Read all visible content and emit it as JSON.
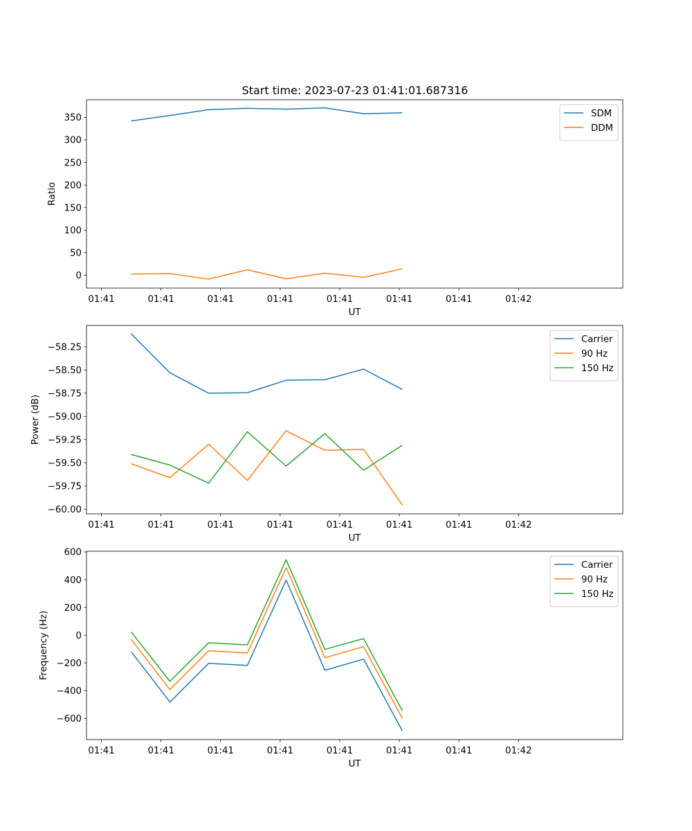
{
  "chart_data": [
    {
      "type": "line",
      "title": "Start time: 2023-07-23 01:41:01.687316",
      "xlabel": "UT",
      "ylabel": "Ratio",
      "x_tick_labels": [
        "01:41",
        "01:41",
        "01:41",
        "01:41",
        "01:41",
        "01:41",
        "01:41",
        "01:42"
      ],
      "xlim": [
        -0.25,
        8.75
      ],
      "ylim": [
        -28.5,
        389
      ],
      "y_ticks": [
        0,
        50,
        100,
        150,
        200,
        250,
        300,
        350
      ],
      "y_tick_labels": [
        "0",
        "50",
        "100",
        "150",
        "200",
        "250",
        "300",
        "350"
      ],
      "legend_position": "top-right",
      "x": [
        0.5,
        1.15,
        1.8,
        2.45,
        3.1,
        3.75,
        4.4,
        5.05
      ],
      "series": [
        {
          "name": "SDM",
          "color": "#1f77b4",
          "values": [
            342,
            354,
            367,
            370,
            368,
            371,
            358,
            360
          ]
        },
        {
          "name": "DDM",
          "color": "#ff7f0e",
          "values": [
            2.5,
            3.5,
            -8.5,
            12,
            -8,
            4.5,
            -4.5,
            14
          ]
        }
      ]
    },
    {
      "type": "line",
      "title": "",
      "xlabel": "UT",
      "ylabel": "Power (dB)",
      "x_tick_labels": [
        "01:41",
        "01:41",
        "01:41",
        "01:41",
        "01:41",
        "01:41",
        "01:41",
        "01:42"
      ],
      "xlim": [
        -0.25,
        8.75
      ],
      "ylim": [
        -60.05,
        -58.02
      ],
      "y_ticks": [
        -60.0,
        -59.75,
        -59.5,
        -59.25,
        -59.0,
        -58.75,
        -58.5,
        -58.25
      ],
      "y_tick_labels": [
        "−60.00",
        "−59.75",
        "−59.50",
        "−59.25",
        "−59.00",
        "−58.75",
        "−58.50",
        "−58.25"
      ],
      "legend_position": "top-right",
      "x": [
        0.5,
        1.15,
        1.8,
        2.45,
        3.1,
        3.75,
        4.4,
        5.05
      ],
      "series": [
        {
          "name": "Carrier",
          "color": "#1f77b4",
          "values": [
            -58.11,
            -58.53,
            -58.75,
            -58.745,
            -58.61,
            -58.605,
            -58.49,
            -58.71
          ]
        },
        {
          "name": "90 Hz",
          "color": "#ff7f0e",
          "values": [
            -59.51,
            -59.66,
            -59.3,
            -59.69,
            -59.155,
            -59.365,
            -59.355,
            -59.955
          ]
        },
        {
          "name": "150 Hz",
          "color": "#2ca02c",
          "values": [
            -59.41,
            -59.525,
            -59.72,
            -59.165,
            -59.535,
            -59.185,
            -59.58,
            -59.31
          ]
        }
      ]
    },
    {
      "type": "line",
      "title": "",
      "xlabel": "UT",
      "ylabel": "Frequency (Hz)",
      "x_tick_labels": [
        "01:41",
        "01:41",
        "01:41",
        "01:41",
        "01:41",
        "01:41",
        "01:41",
        "01:42"
      ],
      "xlim": [
        -0.25,
        8.75
      ],
      "ylim": [
        -753,
        605
      ],
      "y_ticks": [
        -600,
        -400,
        -200,
        0,
        200,
        400,
        600
      ],
      "y_tick_labels": [
        "−600",
        "−400",
        "−200",
        "0",
        "200",
        "400",
        "600"
      ],
      "legend_position": "top-right",
      "x": [
        0.5,
        1.15,
        1.8,
        2.45,
        3.1,
        3.75,
        4.4,
        5.05
      ],
      "series": [
        {
          "name": "Carrier",
          "color": "#1f77b4",
          "values": [
            -120,
            -482,
            -203,
            -218,
            397,
            -253,
            -173,
            -690
          ]
        },
        {
          "name": "90 Hz",
          "color": "#ff7f0e",
          "values": [
            -30,
            -392,
            -113,
            -128,
            487,
            -163,
            -83,
            -600
          ]
        },
        {
          "name": "150 Hz",
          "color": "#2ca02c",
          "values": [
            23,
            -333,
            -55,
            -70,
            543,
            -103,
            -25,
            -545
          ]
        }
      ]
    }
  ]
}
